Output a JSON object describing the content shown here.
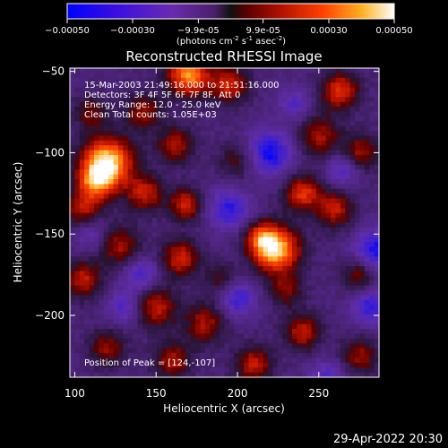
{
  "chart_data": {
    "type": "heatmap",
    "title": "Reconstructed RHESSI Image",
    "xlabel": "Heliocentric X (arcsec)",
    "ylabel": "Heliocentric Y (arcsec)",
    "xlim": [
      97,
      287
    ],
    "ylim": [
      -238,
      -48
    ],
    "x_ticks": [
      100,
      150,
      200,
      250
    ],
    "y_ticks": [
      -50,
      -100,
      -150,
      -200
    ],
    "colorbar": {
      "range": [
        -0.0005,
        0.0005
      ],
      "ticks": [
        "-0.00050",
        "-0.00030",
        "-9.9e-05",
        "9.9e-05",
        "0.00030",
        "0.00050"
      ],
      "unit_prefix": "(photons cm",
      "unit_sup1": "-2",
      "unit_mid1": " s",
      "unit_sup2": "-1",
      "unit_mid2": " asec",
      "unit_sup3": "-2",
      "unit_suffix": ")"
    },
    "annotations": [
      "15-Mar-2003 21:49:16.000 to 21:51:16.000",
      "Detectors: 3F 4F 5F 6F 7F 8F, Att 0",
      "Energy Range: 12.0 - 25.0 keV",
      "Clean     Total counts: 1.05E+03"
    ],
    "peak_label": "Position of Peak = [124,-107]",
    "blobs": [
      {
        "x": 120,
        "y": -106,
        "a": 1.0,
        "s": 11
      },
      {
        "x": 113,
        "y": -118,
        "a": 0.6,
        "s": 8
      },
      {
        "x": 224,
        "y": -160,
        "a": 0.95,
        "s": 10
      },
      {
        "x": 214,
        "y": -152,
        "a": 0.5,
        "s": 7
      },
      {
        "x": 170,
        "y": -52,
        "a": 0.85,
        "s": 9
      },
      {
        "x": 195,
        "y": -58,
        "a": 0.55,
        "s": 8
      },
      {
        "x": 263,
        "y": -62,
        "a": 0.6,
        "s": 8
      },
      {
        "x": 142,
        "y": -75,
        "a": 0.4,
        "s": 8
      },
      {
        "x": 110,
        "y": -75,
        "a": 0.35,
        "s": 7
      },
      {
        "x": 250,
        "y": -90,
        "a": 0.45,
        "s": 9
      },
      {
        "x": 275,
        "y": -100,
        "a": 0.45,
        "s": 8
      },
      {
        "x": 162,
        "y": -95,
        "a": 0.45,
        "s": 8
      },
      {
        "x": 143,
        "y": -125,
        "a": 0.5,
        "s": 8
      },
      {
        "x": 168,
        "y": -132,
        "a": 0.55,
        "s": 7
      },
      {
        "x": 105,
        "y": -135,
        "a": 0.45,
        "s": 8
      },
      {
        "x": 240,
        "y": -125,
        "a": 0.6,
        "s": 8
      },
      {
        "x": 260,
        "y": -135,
        "a": 0.5,
        "s": 8
      },
      {
        "x": 128,
        "y": -158,
        "a": 0.45,
        "s": 9
      },
      {
        "x": 165,
        "y": -165,
        "a": 0.55,
        "s": 8
      },
      {
        "x": 105,
        "y": -178,
        "a": 0.5,
        "s": 8
      },
      {
        "x": 150,
        "y": -195,
        "a": 0.5,
        "s": 9
      },
      {
        "x": 180,
        "y": -205,
        "a": 0.45,
        "s": 9
      },
      {
        "x": 240,
        "y": -210,
        "a": 0.5,
        "s": 8
      },
      {
        "x": 275,
        "y": -175,
        "a": 0.4,
        "s": 7
      },
      {
        "x": 210,
        "y": -230,
        "a": 0.5,
        "s": 8
      },
      {
        "x": 160,
        "y": -228,
        "a": 0.45,
        "s": 8
      },
      {
        "x": 120,
        "y": -220,
        "a": 0.4,
        "s": 8
      },
      {
        "x": 275,
        "y": -225,
        "a": 0.4,
        "s": 8
      },
      {
        "x": 200,
        "y": -105,
        "a": 0.3,
        "s": 8
      },
      {
        "x": 230,
        "y": -185,
        "a": 0.35,
        "s": 7
      },
      {
        "x": 190,
        "y": -178,
        "a": 0.3,
        "s": 7
      }
    ],
    "dips": [
      {
        "x": 220,
        "y": -100,
        "a": 0.7,
        "s": 10
      },
      {
        "x": 195,
        "y": -135,
        "a": 0.6,
        "s": 9
      },
      {
        "x": 285,
        "y": -160,
        "a": 0.7,
        "s": 9
      },
      {
        "x": 282,
        "y": -195,
        "a": 0.6,
        "s": 8
      },
      {
        "x": 140,
        "y": -175,
        "a": 0.5,
        "s": 8
      },
      {
        "x": 200,
        "y": -190,
        "a": 0.55,
        "s": 8
      },
      {
        "x": 255,
        "y": -240,
        "a": 0.5,
        "s": 8
      },
      {
        "x": 130,
        "y": -195,
        "a": 0.45,
        "s": 7
      },
      {
        "x": 265,
        "y": -110,
        "a": 0.5,
        "s": 7
      },
      {
        "x": 110,
        "y": -150,
        "a": 0.35,
        "s": 7
      },
      {
        "x": 235,
        "y": -70,
        "a": 0.4,
        "s": 7
      }
    ]
  },
  "footer": {
    "timestamp": "29-Apr-2022 20:30"
  }
}
